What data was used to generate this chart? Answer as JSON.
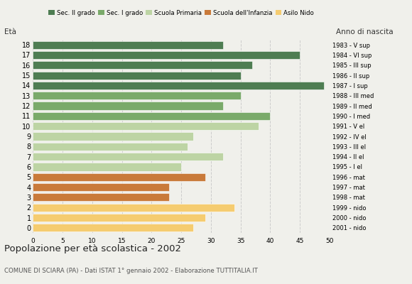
{
  "ages": [
    18,
    17,
    16,
    15,
    14,
    13,
    12,
    11,
    10,
    9,
    8,
    7,
    6,
    5,
    4,
    3,
    2,
    1,
    0
  ],
  "values": [
    32,
    45,
    37,
    35,
    49,
    35,
    32,
    40,
    38,
    27,
    26,
    32,
    25,
    29,
    23,
    23,
    34,
    29,
    27
  ],
  "years": [
    "1983 - V sup",
    "1984 - VI sup",
    "1985 - III sup",
    "1986 - II sup",
    "1987 - I sup",
    "1988 - III med",
    "1989 - II med",
    "1990 - I med",
    "1991 - V el",
    "1992 - IV el",
    "1993 - III el",
    "1994 - II el",
    "1995 - I el",
    "1996 - mat",
    "1997 - mat",
    "1998 - mat",
    "1999 - nido",
    "2000 - nido",
    "2001 - nido"
  ],
  "colors": [
    "#4e7d52",
    "#4e7d52",
    "#4e7d52",
    "#4e7d52",
    "#4e7d52",
    "#7aaa6a",
    "#7aaa6a",
    "#7aaa6a",
    "#bdd4a4",
    "#bdd4a4",
    "#bdd4a4",
    "#bdd4a4",
    "#bdd4a4",
    "#c97a3a",
    "#c97a3a",
    "#c97a3a",
    "#f5cc70",
    "#f5cc70",
    "#f5cc70"
  ],
  "legend_labels": [
    "Sec. II grado",
    "Sec. I grado",
    "Scuola Primaria",
    "Scuola dell'Infanzia",
    "Asilo Nido"
  ],
  "legend_colors": [
    "#4e7d52",
    "#7aaa6a",
    "#bdd4a4",
    "#c97a3a",
    "#f5cc70"
  ],
  "title": "Popolazione per età scolastica - 2002",
  "subtitle": "COMUNE DI SCIARA (PA) - Dati ISTAT 1° gennaio 2002 - Elaborazione TUTTITALIA.IT",
  "label_left": "Età",
  "label_right": "Anno di nascita",
  "xlim": [
    0,
    50
  ],
  "xticks": [
    0,
    5,
    10,
    15,
    20,
    25,
    30,
    35,
    40,
    45,
    50
  ],
  "bg_color": "#f0f0eb",
  "grid_color": "#cccccc"
}
